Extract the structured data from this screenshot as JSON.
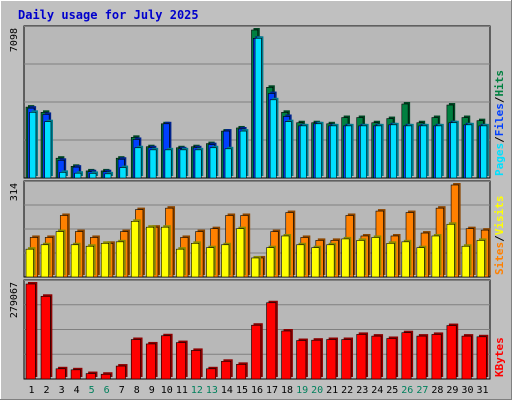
{
  "title": "Daily usage for July 2025",
  "colors": {
    "background": "#c0c0c0",
    "panel": "#b8b8b8",
    "hits": "#008040",
    "files": "#0040ff",
    "pages": "#00e0ff",
    "visits": "#ff8000",
    "sites": "#ffff00",
    "kbytes": "#ff0000",
    "weekend_day": "#00805c",
    "weekday_day": "#000000"
  },
  "chart_data": [
    {
      "type": "bar",
      "name": "hits-files-pages",
      "right_label": [
        "Pages",
        "/",
        "Files",
        "/",
        "Hits"
      ],
      "ymax_label": "7098",
      "ymax": 7098,
      "categories": [
        "1",
        "2",
        "3",
        "4",
        "5",
        "6",
        "7",
        "8",
        "9",
        "10",
        "11",
        "12",
        "13",
        "14",
        "15",
        "16",
        "17",
        "18",
        "19",
        "20",
        "21",
        "22",
        "23",
        "24",
        "25",
        "26",
        "27",
        "28",
        "29",
        "30",
        "31"
      ],
      "series": [
        {
          "name": "Hits",
          "values": [
            3400,
            3150,
            950,
            560,
            340,
            340,
            950,
            1950,
            1500,
            2600,
            1450,
            1500,
            1650,
            2250,
            2400,
            7098,
            4350,
            3150,
            2650,
            2650,
            2600,
            2900,
            2900,
            2650,
            2850,
            3550,
            2650,
            2900,
            3500,
            2900,
            2750
          ]
        },
        {
          "name": "Files",
          "values": [
            3350,
            3050,
            850,
            520,
            300,
            300,
            900,
            1850,
            1450,
            2600,
            1400,
            1450,
            1600,
            2250,
            2350,
            6700,
            4050,
            2950,
            2500,
            2600,
            2500,
            2500,
            2500,
            2500,
            2550,
            2500,
            2500,
            2500,
            2650,
            2550,
            2500
          ]
        },
        {
          "name": "Pages",
          "values": [
            3150,
            2700,
            270,
            230,
            220,
            200,
            500,
            1450,
            1350,
            1350,
            1350,
            1350,
            1450,
            1400,
            2250,
            6700,
            3750,
            2700,
            2500,
            2600,
            2500,
            2500,
            2500,
            2500,
            2550,
            2500,
            2500,
            2500,
            2650,
            2550,
            2500
          ]
        }
      ]
    },
    {
      "type": "bar",
      "name": "visits-sites",
      "right_label": [
        "Sites",
        "/",
        "Visits"
      ],
      "ymax_label": "314",
      "ymax": 314,
      "categories": [
        "1",
        "2",
        "3",
        "4",
        "5",
        "6",
        "7",
        "8",
        "9",
        "10",
        "11",
        "12",
        "13",
        "14",
        "15",
        "16",
        "17",
        "18",
        "19",
        "20",
        "21",
        "22",
        "23",
        "24",
        "25",
        "26",
        "27",
        "28",
        "29",
        "30",
        "31"
      ],
      "series": [
        {
          "name": "Visits",
          "values": [
            135,
            135,
            210,
            155,
            135,
            115,
            155,
            230,
            170,
            235,
            135,
            155,
            165,
            210,
            210,
            65,
            155,
            220,
            135,
            125,
            125,
            210,
            140,
            225,
            140,
            220,
            150,
            235,
            314,
            165,
            160
          ]
        },
        {
          "name": "Sites",
          "values": [
            95,
            110,
            155,
            110,
            105,
            115,
            120,
            190,
            170,
            170,
            95,
            115,
            100,
            110,
            165,
            65,
            100,
            140,
            110,
            100,
            110,
            130,
            125,
            135,
            115,
            120,
            100,
            140,
            180,
            105,
            125
          ]
        }
      ]
    },
    {
      "type": "bar",
      "name": "kbytes",
      "right_label": [
        "KBytes"
      ],
      "ymax_label": "279067",
      "ymax": 279067,
      "categories": [
        "1",
        "2",
        "3",
        "4",
        "5",
        "6",
        "7",
        "8",
        "9",
        "10",
        "11",
        "12",
        "13",
        "14",
        "15",
        "16",
        "17",
        "18",
        "19",
        "20",
        "21",
        "22",
        "23",
        "24",
        "25",
        "26",
        "27",
        "28",
        "29",
        "30",
        "31"
      ],
      "series": [
        {
          "name": "KBytes",
          "values": [
            279067,
            243000,
            30000,
            27000,
            16000,
            14000,
            38000,
            116000,
            103000,
            127000,
            107000,
            84000,
            30000,
            52000,
            43000,
            158000,
            224000,
            141000,
            113000,
            114000,
            116000,
            116000,
            131000,
            126000,
            119000,
            136000,
            126000,
            131000,
            157000,
            126000,
            124000
          ]
        }
      ]
    }
  ]
}
